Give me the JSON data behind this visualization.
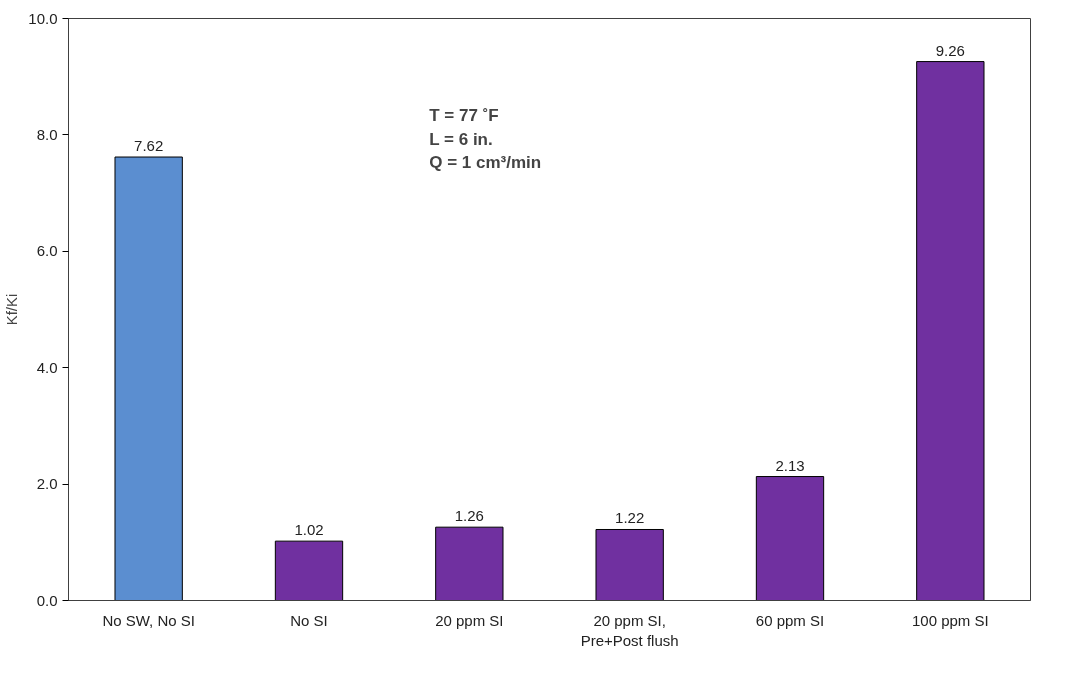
{
  "chart_data": {
    "type": "bar",
    "ylabel": "Kf/Ki",
    "categories": [
      "No SW, No SI",
      "No SI",
      "20 ppm SI",
      "20 ppm SI,\nPre+Post flush",
      "60 ppm SI",
      "100 ppm SI"
    ],
    "values": [
      7.62,
      1.02,
      1.26,
      1.22,
      2.13,
      9.26
    ],
    "colors": [
      "#5b8ed0",
      "#7030a0",
      "#7030a0",
      "#7030a0",
      "#7030a0",
      "#7030a0"
    ],
    "ylim": [
      0,
      10
    ],
    "yticks": [
      {
        "value": 0,
        "label": "0.0"
      },
      {
        "value": 2,
        "label": "2.0"
      },
      {
        "value": 4,
        "label": "4.0"
      },
      {
        "value": 6,
        "label": "6.0"
      },
      {
        "value": 8,
        "label": "8.0"
      },
      {
        "value": 10,
        "label": "10.0"
      }
    ],
    "data_labels": true,
    "grid": false,
    "annotations": [
      "T = 77 ˚F\nL = 6 in.\nQ = 1 cm³/min"
    ]
  }
}
